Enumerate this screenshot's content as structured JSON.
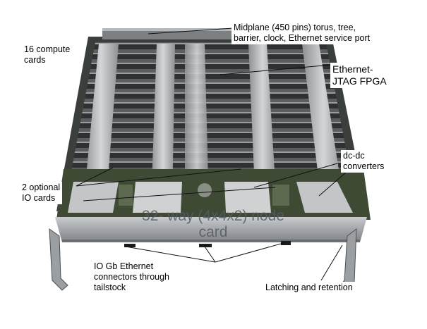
{
  "figure": {
    "subject": "Photograph of a populated compute node card with compute cards, heat sinks and a metal tailstock",
    "colors": {
      "background": "#ffffff",
      "heatsink": "#b9bbbd",
      "board": "#3a4a3a",
      "tailstock": "#a7a9ac",
      "leader_line": "#111111"
    }
  },
  "labels": {
    "midplane": "Midplane (450 pins) torus, tree,\nbarrier, clock, Ethernet service port",
    "compute_cards": "16 compute\ncards",
    "fpga": "Ethernet-\nJTAG FPGA",
    "dcdc": "dc-dc\nconverters",
    "io_cards": "2 optional\nIO cards",
    "node_card_line1": "32- way (4x4x2) node",
    "node_card_line2": "card",
    "ethernet": "IO Gb Ethernet\nconnectors  through\ntailstock",
    "latching": "Latching and retention"
  }
}
